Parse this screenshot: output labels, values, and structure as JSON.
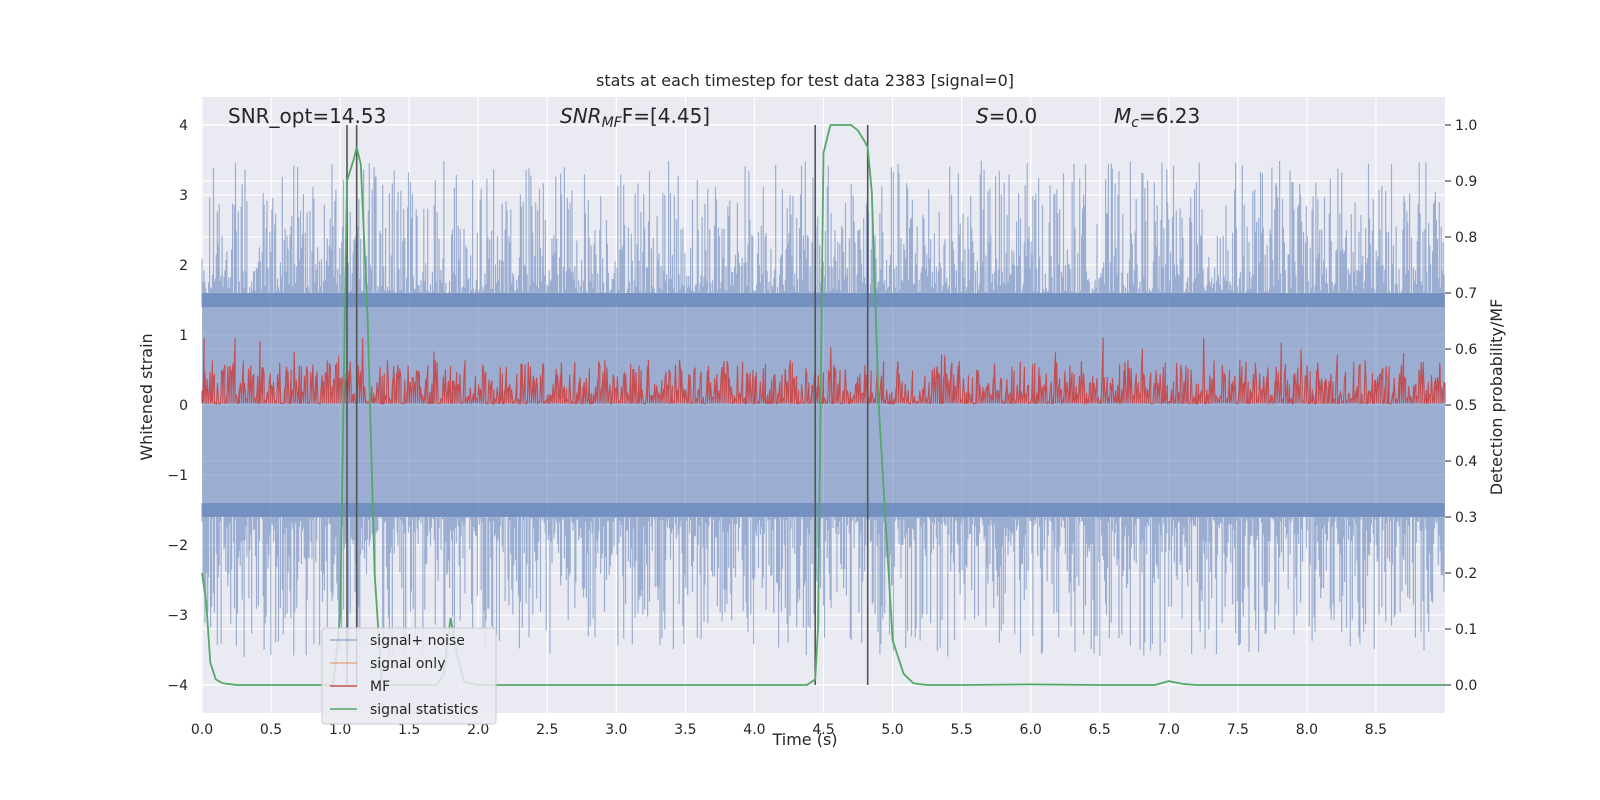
{
  "chart_data": {
    "type": "line",
    "title": "stats at each timestep for test data 2383 [signal=0]",
    "xlabel": "Time (s)",
    "ylabel": "Whitened strain",
    "y2label": "Detection probability/MF",
    "xlim": [
      0,
      9
    ],
    "ylim": [
      -4.4,
      4.4
    ],
    "y2lim": [
      -0.05,
      1.05
    ],
    "xticks": [
      "0.0",
      "0.5",
      "1.0",
      "1.5",
      "2.0",
      "2.5",
      "3.0",
      "3.5",
      "4.0",
      "4.5",
      "5.0",
      "5.5",
      "6.0",
      "6.5",
      "7.0",
      "7.5",
      "8.0",
      "8.5"
    ],
    "xtick_values": [
      0.0,
      0.5,
      1.0,
      1.5,
      2.0,
      2.5,
      3.0,
      3.5,
      4.0,
      4.5,
      5.0,
      5.5,
      6.0,
      6.5,
      7.0,
      7.5,
      8.0,
      8.5
    ],
    "yticks": [
      "−4",
      "−3",
      "−2",
      "−1",
      "0",
      "1",
      "2",
      "3",
      "4"
    ],
    "ytick_values": [
      -4,
      -3,
      -2,
      -1,
      0,
      1,
      2,
      3,
      4
    ],
    "y2ticks": [
      "0.0",
      "0.1",
      "0.2",
      "0.3",
      "0.4",
      "0.5",
      "0.6",
      "0.7",
      "0.8",
      "0.9",
      "1.0"
    ],
    "y2tick_values": [
      0.0,
      0.1,
      0.2,
      0.3,
      0.4,
      0.5,
      0.6,
      0.7,
      0.8,
      0.9,
      1.0
    ],
    "annotations": {
      "snr_opt": "SNR_opt=14.53",
      "snr_mf_main": "SNR",
      "snr_mf_sub": "MF",
      "snr_mf_tail": "F=[4.45]",
      "s_main": "S",
      "s_tail": "=0.0",
      "mc_main": "M",
      "mc_sub": "c",
      "mc_tail": "=6.23"
    },
    "vertical_lines_x": [
      1.05,
      1.12,
      4.44,
      4.82
    ],
    "legend": {
      "placement": "lower-left",
      "entries": [
        "signal+ noise",
        "signal only",
        "MF",
        "signal statistics"
      ]
    },
    "series": [
      {
        "name": "signal+ noise",
        "axis": "left",
        "color": "#4c72b0",
        "description": "noise band",
        "band_core": [
          -1.6,
          1.6
        ],
        "band_peak": [
          -3.6,
          3.5
        ]
      },
      {
        "name": "signal only",
        "axis": "left",
        "color": "#dd8452",
        "values": []
      },
      {
        "name": "MF",
        "axis": "right",
        "color": "#c44e52",
        "band": [
          0.5,
          0.6
        ]
      },
      {
        "name": "signal statistics",
        "axis": "right",
        "color": "#55a868",
        "x": [
          0.0,
          0.03,
          0.06,
          0.1,
          0.15,
          0.25,
          0.4,
          0.6,
          0.8,
          0.95,
          1.0,
          1.05,
          1.1,
          1.12,
          1.15,
          1.2,
          1.25,
          1.3,
          1.35,
          1.5,
          1.7,
          1.75,
          1.8,
          1.85,
          1.9,
          2.0,
          2.5,
          3.0,
          3.5,
          4.0,
          4.38,
          4.44,
          4.46,
          4.5,
          4.55,
          4.6,
          4.7,
          4.75,
          4.8,
          4.82,
          4.85,
          4.9,
          5.0,
          5.08,
          5.15,
          5.25,
          5.5,
          6.0,
          6.5,
          6.9,
          7.0,
          7.1,
          7.2,
          7.5,
          8.0,
          8.5,
          9.0
        ],
        "values": [
          0.2,
          0.15,
          0.04,
          0.01,
          0.003,
          0.0,
          0.0,
          0.0,
          0.0,
          0.0,
          0.12,
          0.9,
          0.94,
          0.96,
          0.93,
          0.65,
          0.2,
          0.01,
          0.0,
          0.0,
          0.0,
          0.02,
          0.12,
          0.05,
          0.005,
          0.0,
          0.0,
          0.0,
          0.0,
          0.0,
          0.0,
          0.01,
          0.1,
          0.95,
          1.0,
          1.0,
          1.0,
          0.99,
          0.97,
          0.96,
          0.88,
          0.5,
          0.08,
          0.02,
          0.003,
          0.0,
          0.0,
          0.001,
          0.0,
          0.0,
          0.007,
          0.002,
          0.0,
          0.0,
          0.0,
          0.0,
          0.0
        ]
      }
    ]
  }
}
